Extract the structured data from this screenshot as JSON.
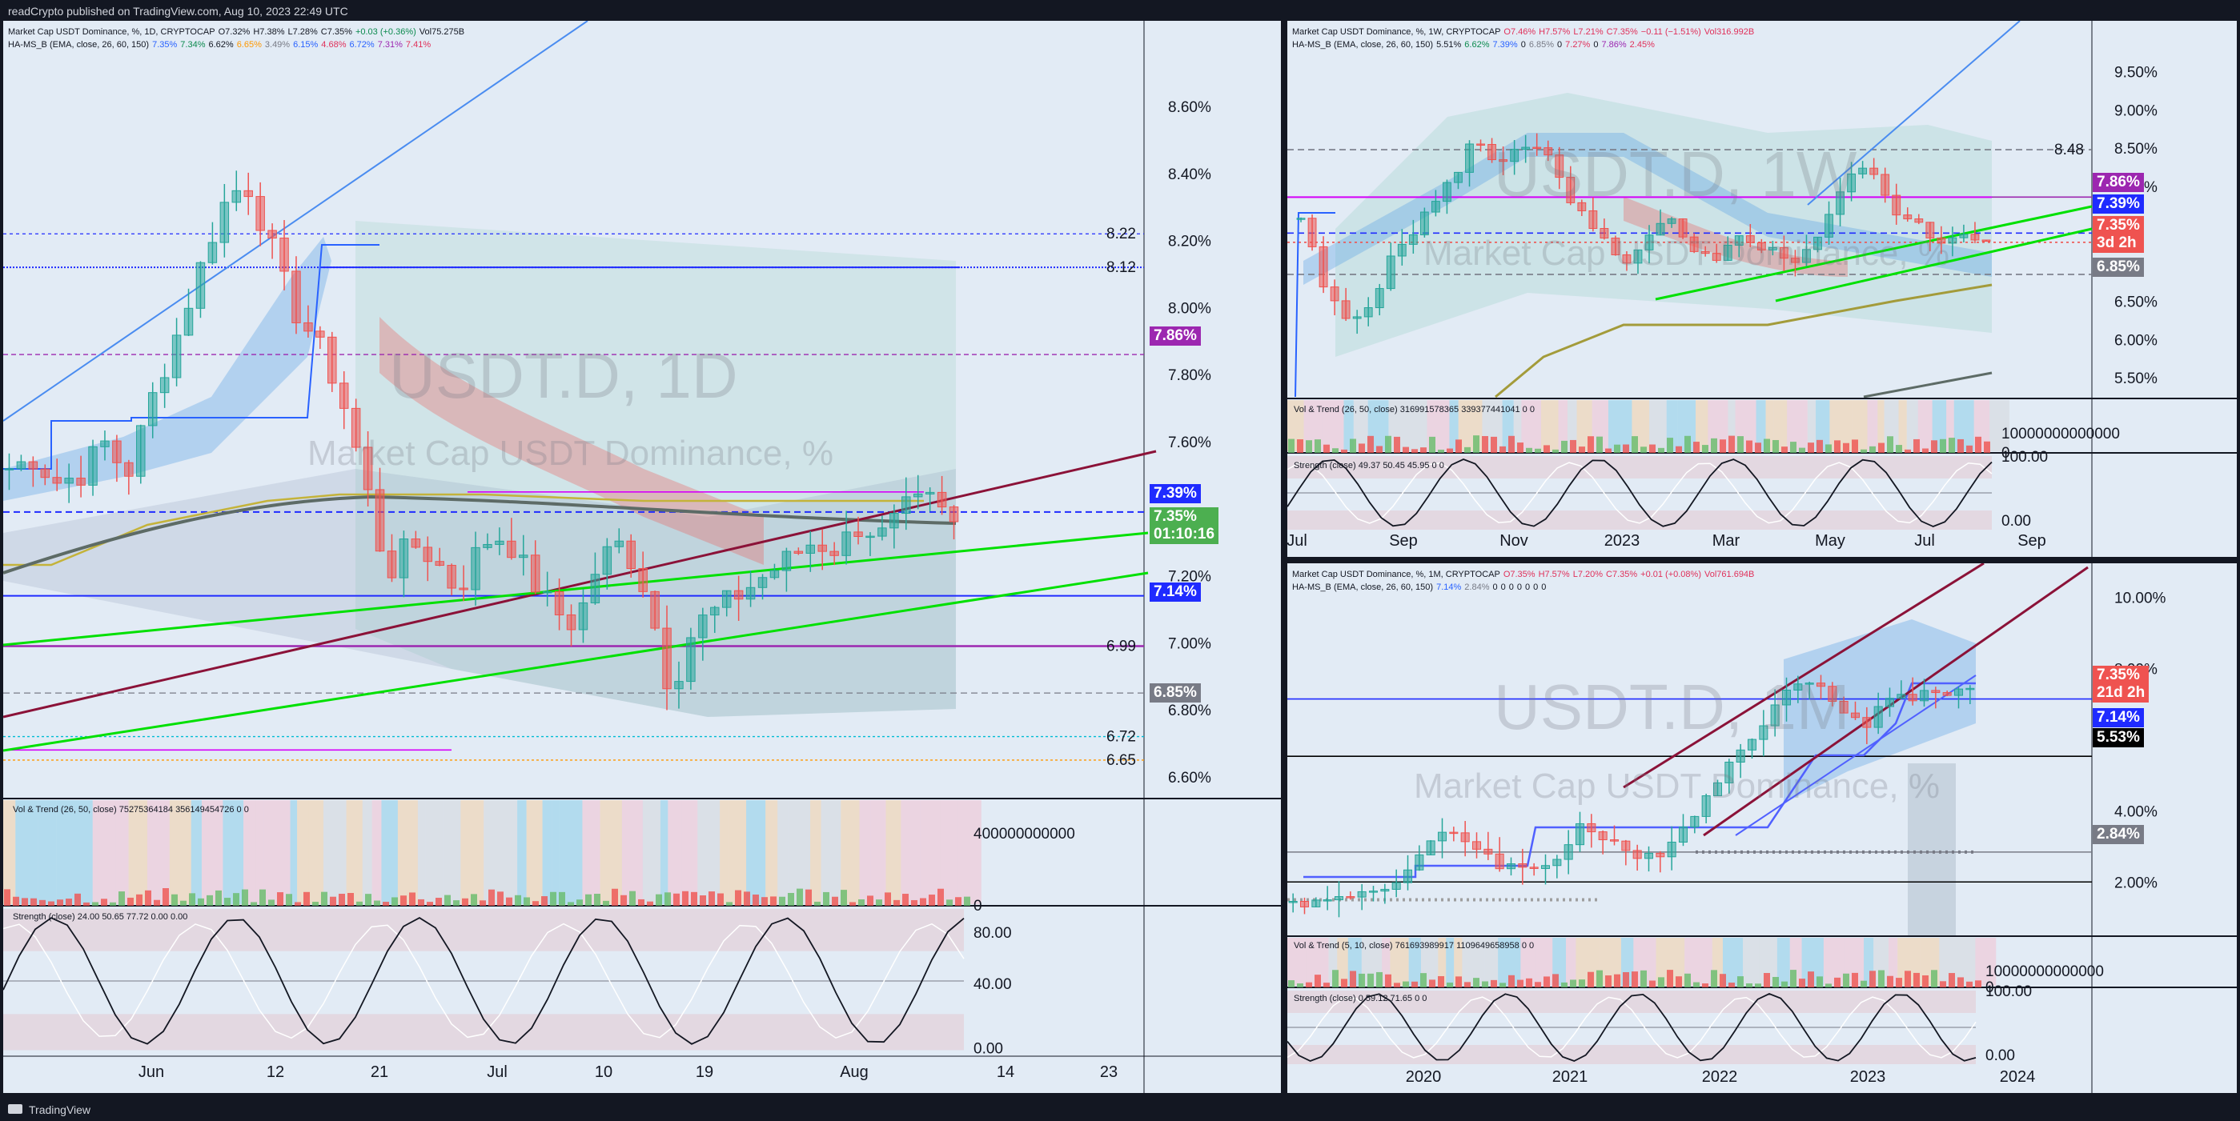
{
  "app": {
    "header_text": "readCrypto published on TradingView.com, Aug 10, 2023 22:49 UTC",
    "footer_text": "TradingView"
  },
  "colors": {
    "up": "#26a69a",
    "down": "#ef5350",
    "panel_bg": "#e2ebf5",
    "blue_line": "#1f2bff",
    "purple": "#9c27b0",
    "green_line": "#00e000",
    "maroon": "#7b1037"
  },
  "chart_data": [
    {
      "id": "daily",
      "type": "candlestick",
      "title_line": [
        "Market Cap USDT Dominance, %, 1D, CRYPTOCAP",
        "O7.32%",
        "H7.38%",
        "L7.28%",
        "C7.35%",
        "+0.03 (+0.36%)",
        "Vol75.275B"
      ],
      "indicator_line": [
        "HA-MS_B (EMA, close, 26, 60, 150)",
        "7.35%",
        "7.34%",
        "6.62%",
        "6.65%",
        "3.49%",
        "6.15%",
        "4.68%",
        "6.72%",
        "7.31%",
        "7.41%"
      ],
      "watermark_big": "USDT.D, 1D",
      "watermark_small": "Market Cap USDT Dominance, %",
      "ylim": [
        6.54,
        8.76
      ],
      "y_ticks": [
        "8.60%",
        "8.40%",
        "8.20%",
        "8.00%",
        "7.80%",
        "7.60%",
        "7.20%",
        "7.00%",
        "6.80%",
        "6.60%"
      ],
      "x_ticks": [
        "Jun",
        "12",
        "21",
        "Jul",
        "10",
        "19",
        "Aug",
        "14",
        "23"
      ],
      "level_labels": [
        "8.22",
        "8.12",
        "6.99",
        "6.72",
        "6.65"
      ],
      "price_tags": [
        {
          "text": "7.86%",
          "bg": "#9c27b0",
          "value": 7.86
        },
        {
          "text": "7.39%",
          "bg": "#1f2bff",
          "value": 7.39
        },
        {
          "text": "7.14%",
          "bg": "#1f2bff",
          "value": 7.14
        },
        {
          "text": "6.85%",
          "bg": "#787b86",
          "value": 6.85
        }
      ],
      "last_price": {
        "text": "7.35%",
        "countdown": "01:10:16",
        "bg": "#4caf50",
        "value": 7.35
      },
      "candles_sample": [
        {
          "d": "May 23",
          "o": 7.5,
          "h": 7.62,
          "l": 7.42,
          "c": 7.55
        },
        {
          "d": "Jun 1",
          "o": 7.46,
          "h": 7.72,
          "l": 7.4,
          "c": 7.58
        },
        {
          "d": "Jun 9",
          "o": 7.76,
          "h": 8.21,
          "l": 7.72,
          "c": 8.18
        },
        {
          "d": "Jun 14",
          "o": 8.38,
          "h": 8.52,
          "l": 8.15,
          "c": 8.2
        },
        {
          "d": "Jun 20",
          "o": 7.92,
          "h": 8.04,
          "l": 7.72,
          "c": 7.86
        },
        {
          "d": "Jun 22",
          "o": 7.6,
          "h": 7.64,
          "l": 7.08,
          "c": 7.16
        },
        {
          "d": "Jul 5",
          "o": 7.08,
          "h": 7.3,
          "l": 7.02,
          "c": 7.24
        },
        {
          "d": "Jul 14",
          "o": 7.04,
          "h": 7.08,
          "l": 6.75,
          "c": 6.82
        },
        {
          "d": "Jul 27",
          "o": 7.24,
          "h": 7.38,
          "l": 7.14,
          "c": 7.3
        },
        {
          "d": "Aug 10",
          "o": 7.32,
          "h": 7.38,
          "l": 7.28,
          "c": 7.35
        }
      ],
      "vol_panel": {
        "title": "Vol & Trend (26, 50, close)",
        "v1": "75275364184",
        "v2": "356149454726",
        "v3": "0",
        "v4": "0",
        "ticks": [
          "400000000000",
          "0"
        ]
      },
      "strength_panel": {
        "title": "Strength (close)",
        "v1": "24.00",
        "v2": "50.65",
        "v3": "77.72",
        "v4": "0.00",
        "v5": "0.00",
        "ticks": [
          "80.00",
          "40.00",
          "0.00"
        ]
      }
    },
    {
      "id": "weekly",
      "type": "candlestick",
      "title_line": [
        "Market Cap USDT Dominance, %, 1W, CRYPTOCAP",
        "O7.46%",
        "H7.57%",
        "L7.21%",
        "C7.35%",
        "−0.11 (−1.51%)",
        "Vol316.992B"
      ],
      "indicator_line": [
        "HA-MS_B (EMA, close, 26, 60, 150)",
        "5.51%",
        "6.62%",
        "7.39%",
        "0",
        "6.85%",
        "0",
        "7.27%",
        "0",
        "7.86%",
        "2.45%"
      ],
      "watermark_big": "USDT.D, 1W",
      "watermark_small": "Market Cap USDT Dominance, %",
      "ylim": [
        5.25,
        9.85
      ],
      "y_ticks": [
        "9.50%",
        "9.00%",
        "8.50%",
        "8.00%",
        "6.50%",
        "6.00%",
        "5.50%"
      ],
      "x_ticks": [
        "Jul",
        "Sep",
        "Nov",
        "2023",
        "Mar",
        "May",
        "Jul",
        "Sep"
      ],
      "level_labels": [
        "8.48"
      ],
      "price_tags": [
        {
          "text": "7.86%",
          "bg": "#9c27b0",
          "value": 7.86
        },
        {
          "text": "7.39%",
          "bg": "#1f2bff",
          "value": 7.39
        },
        {
          "text": "6.85%",
          "bg": "#787b86",
          "value": 6.85
        }
      ],
      "last_price": {
        "text": "7.35%",
        "countdown": "3d 2h",
        "bg": "#ef5350",
        "value": 7.35
      },
      "vol_panel": {
        "title": "Vol & Trend (26, 50, close)",
        "v1": "316991578365",
        "v2": "339377441041",
        "v3": "0",
        "v4": "0",
        "ticks": [
          "10000000000000",
          "0"
        ]
      },
      "strength_panel": {
        "title": "Strength (close)",
        "v1": "49.37",
        "v2": "50.45",
        "v3": "45.95",
        "v4": "0",
        "v5": "0",
        "ticks": [
          "100.00",
          "0.00"
        ]
      }
    },
    {
      "id": "monthly",
      "type": "candlestick",
      "title_line": [
        "Market Cap USDT Dominance, %, 1M, CRYPTOCAP",
        "O7.35%",
        "H7.57%",
        "L7.20%",
        "C7.35%",
        "+0.01 (+0.08%)",
        "Vol761.694B"
      ],
      "indicator_line": [
        "HA-MS_B (EMA, close, 26, 60, 150)",
        "7.14%",
        "2.84%",
        "0",
        "0",
        "0",
        "0",
        "0",
        "0",
        "0"
      ],
      "watermark_big": "USDT.D, 1M",
      "watermark_small": "Market Cap USDT Dominance, %",
      "ylim": [
        0.5,
        10.5
      ],
      "y_ticks": [
        "10.00%",
        "8.00%",
        "4.00%",
        "2.00%"
      ],
      "x_ticks": [
        "2020",
        "2021",
        "2022",
        "2023",
        "2024"
      ],
      "price_tags": [
        {
          "text": "7.14%",
          "bg": "#1f2bff",
          "value": 7.14
        },
        {
          "text": "5.53%",
          "bg": "#000000",
          "value": 5.53
        },
        {
          "text": "2.84%",
          "bg": "#787b86",
          "value": 2.84
        }
      ],
      "last_price": {
        "text": "7.35%",
        "countdown": "21d 2h",
        "bg": "#ef5350",
        "value": 7.35
      },
      "vol_panel": {
        "title": "Vol & Trend (5, 10, close)",
        "v1": "761693989917",
        "v2": "1109649658958",
        "v3": "0",
        "v4": "0",
        "ticks": [
          "10000000000000",
          "0"
        ]
      },
      "strength_panel": {
        "title": "Strength (close)",
        "v1": "0",
        "v2": "59.12",
        "v3": "71.65",
        "v4": "0",
        "v5": "0",
        "ticks": [
          "100.00",
          "0.00"
        ]
      }
    }
  ]
}
